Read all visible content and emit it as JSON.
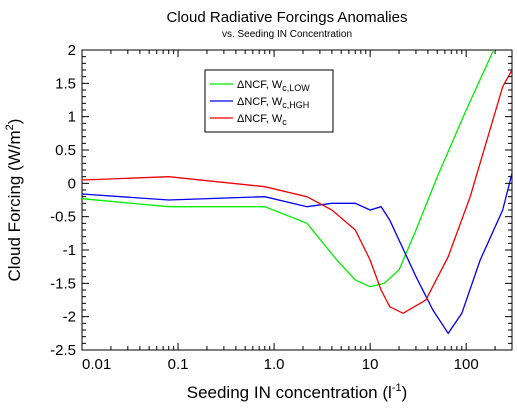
{
  "chart_data": {
    "type": "line",
    "title": "Cloud Radiative Forcings Anomalies",
    "subtitle": "vs. Seeding IN Concentration",
    "xlabel": "Seeding IN concentration (l",
    "xlabel_sup": "-1",
    "xlabel_end": ")",
    "ylabel": "Cloud Forcing (W/m",
    "ylabel_sup": "2",
    "ylabel_end": ")",
    "xscale": "log",
    "xlim": [
      0.01,
      300
    ],
    "ylim": [
      -2.5,
      2
    ],
    "grid": false,
    "legend_position": "upper-left",
    "xticks": [
      {
        "value": 0.01,
        "label": "0.01"
      },
      {
        "value": 0.1,
        "label": "0.1"
      },
      {
        "value": 1.0,
        "label": "1.0"
      },
      {
        "value": 10,
        "label": "10"
      },
      {
        "value": 100,
        "label": "100"
      }
    ],
    "yticks": [
      {
        "value": 2,
        "label": "2"
      },
      {
        "value": 1.5,
        "label": "1.5"
      },
      {
        "value": 1,
        "label": "1"
      },
      {
        "value": 0.5,
        "label": "0.5"
      },
      {
        "value": 0,
        "label": "0"
      },
      {
        "value": -0.5,
        "label": "-0.5"
      },
      {
        "value": -1,
        "label": "-1"
      },
      {
        "value": -1.5,
        "label": "-1.5"
      },
      {
        "value": -2,
        "label": "-2"
      },
      {
        "value": -2.5,
        "label": "-2.5"
      }
    ],
    "series": [
      {
        "name": "ΔNCF, W",
        "name_sub": "c,LOW",
        "color": "#00ee00",
        "x": [
          0.01,
          0.08,
          0.8,
          2.2,
          4.5,
          7,
          10,
          14,
          20,
          30,
          50,
          100,
          200
        ],
        "y": [
          -0.23,
          -0.35,
          -0.35,
          -0.6,
          -1.15,
          -1.45,
          -1.55,
          -1.5,
          -1.3,
          -0.7,
          0.1,
          1.1,
          2.05
        ]
      },
      {
        "name": "ΔNCF, W",
        "name_sub": "c,HGH",
        "color": "#0000ee",
        "x": [
          0.01,
          0.08,
          0.8,
          2.2,
          4.0,
          7,
          10,
          13,
          16,
          30,
          45,
          65,
          90,
          140,
          240,
          300
        ],
        "y": [
          -0.16,
          -0.25,
          -0.2,
          -0.35,
          -0.3,
          -0.3,
          -0.4,
          -0.35,
          -0.55,
          -1.4,
          -1.9,
          -2.25,
          -1.95,
          -1.15,
          -0.4,
          0.15
        ]
      },
      {
        "name": "ΔNCF, W",
        "name_sub": "c",
        "color": "#ee0000",
        "x": [
          0.01,
          0.08,
          0.8,
          2.2,
          4.0,
          7,
          10,
          13,
          16,
          22,
          38,
          65,
          110,
          240,
          300
        ],
        "y": [
          0.05,
          0.1,
          -0.05,
          -0.2,
          -0.4,
          -0.7,
          -1.15,
          -1.6,
          -1.85,
          -1.95,
          -1.75,
          -1.1,
          -0.2,
          1.45,
          1.7
        ]
      }
    ]
  }
}
